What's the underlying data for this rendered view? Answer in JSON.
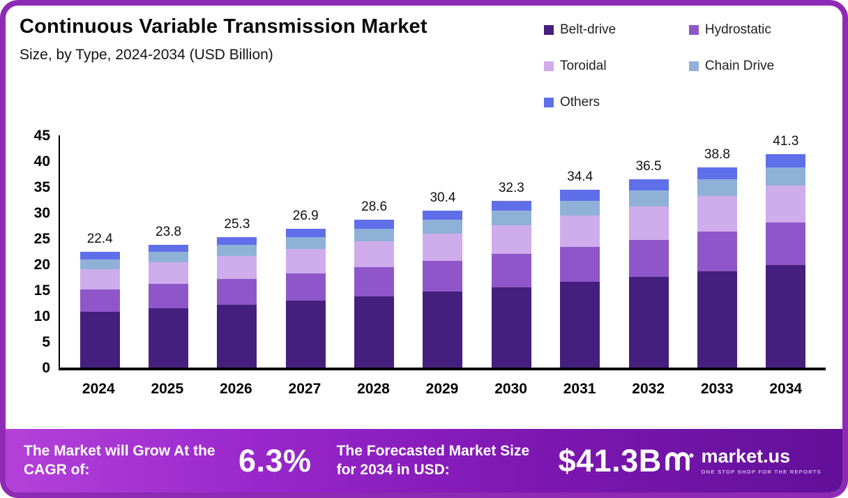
{
  "header": {
    "title": "Continuous Variable Transmission Market",
    "subtitle": "Size, by Type, 2024-2034 (USD Billion)"
  },
  "chart_data": {
    "type": "bar",
    "stacked": true,
    "title": "Continuous Variable Transmission Market Size, by Type, 2024-2034 (USD Billion)",
    "xlabel": "",
    "ylabel": "",
    "ylim": [
      0,
      45
    ],
    "yticks": [
      0,
      5,
      10,
      15,
      20,
      25,
      30,
      35,
      40,
      45
    ],
    "grid": false,
    "legend_position": "top-right",
    "categories": [
      "2024",
      "2025",
      "2026",
      "2027",
      "2028",
      "2029",
      "2030",
      "2031",
      "2032",
      "2033",
      "2034"
    ],
    "totals": [
      22.4,
      23.8,
      25.3,
      26.9,
      28.6,
      30.4,
      32.3,
      34.4,
      36.5,
      38.8,
      41.3
    ],
    "series": [
      {
        "name": "Belt-drive",
        "color": "#451f7d",
        "values": [
          10.8,
          11.5,
          12.2,
          13.0,
          13.8,
          14.7,
          15.6,
          16.6,
          17.6,
          18.7,
          19.9
        ]
      },
      {
        "name": "Hydrostatic",
        "color": "#8f56c9",
        "values": [
          4.4,
          4.7,
          5.0,
          5.3,
          5.7,
          6.0,
          6.4,
          6.8,
          7.2,
          7.7,
          8.2
        ]
      },
      {
        "name": "Toroidal",
        "color": "#cfaceb",
        "values": [
          3.9,
          4.2,
          4.4,
          4.7,
          5.0,
          5.3,
          5.6,
          6.0,
          6.4,
          6.8,
          7.2
        ]
      },
      {
        "name": "Chain Drive",
        "color": "#8fb1d8",
        "values": [
          1.9,
          2.0,
          2.2,
          2.3,
          2.4,
          2.6,
          2.8,
          2.9,
          3.1,
          3.3,
          3.5
        ]
      },
      {
        "name": "Others",
        "color": "#5f6fea",
        "values": [
          1.4,
          1.4,
          1.5,
          1.6,
          1.7,
          1.8,
          1.9,
          2.1,
          2.2,
          2.3,
          2.5
        ]
      }
    ]
  },
  "footer": {
    "cagr_label": "The Market will Grow At the CAGR of:",
    "cagr_value": "6.3%",
    "forecast_label": "The Forecasted Market Size for 2034 in USD:",
    "forecast_value": "$41.3B",
    "brand": "market.us",
    "brand_tagline": "ONE STOP SHOP FOR THE REPORTS"
  }
}
